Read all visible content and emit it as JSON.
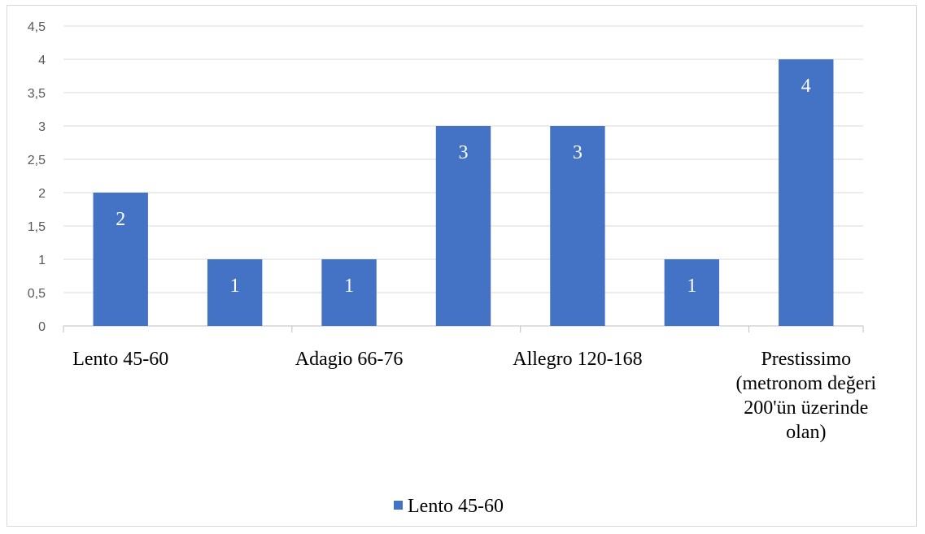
{
  "chart_data": {
    "type": "bar",
    "categories": [
      "Lento 45-60",
      "",
      "Adagio 66-76",
      "",
      "Allegro 120-168",
      "",
      "Prestissimo (metronom değeri 200'ün üzerinde olan)"
    ],
    "category_lines": [
      [
        "Lento 45-60"
      ],
      [],
      [
        "Adagio 66-76"
      ],
      [],
      [
        "Allegro 120-168"
      ],
      [],
      [
        "Prestissimo",
        "(metronom değeri",
        "200'ün üzerinde",
        "olan)"
      ]
    ],
    "series": [
      {
        "name": "Lento 45-60",
        "values": [
          2,
          1,
          1,
          3,
          3,
          1,
          4
        ],
        "color": "#4472c4"
      }
    ],
    "data_labels": [
      "2",
      "1",
      "1",
      "3",
      "3",
      "1",
      "4"
    ],
    "ylim": [
      0,
      4.5
    ],
    "yticks": [
      "0",
      "0,5",
      "1",
      "1,5",
      "2",
      "2,5",
      "3",
      "3,5",
      "4",
      "4,5"
    ],
    "title": "",
    "xlabel": "",
    "ylabel": "",
    "grid": true,
    "legend_position": "bottom"
  },
  "legend": {
    "label": "Lento 45-60"
  }
}
